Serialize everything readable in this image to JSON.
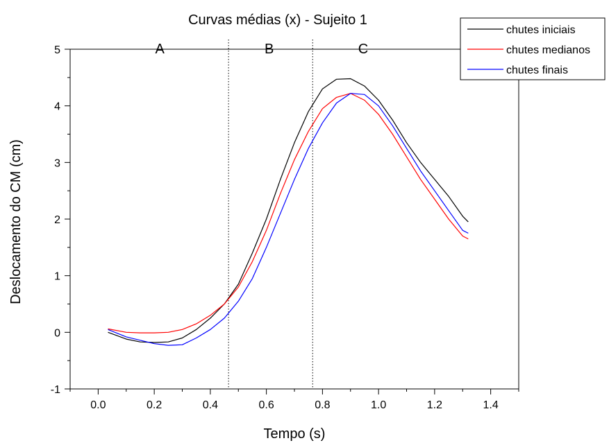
{
  "chart_data": {
    "type": "line",
    "title": "Curvas médias (x) - Sujeito 1",
    "xlabel": "Tempo (s)",
    "ylabel": "Deslocamento do CM (cm)",
    "xlim": [
      -0.1,
      1.5
    ],
    "ylim": [
      -1,
      5
    ],
    "xticks": [
      "0.0",
      "0.2",
      "0.4",
      "0.6",
      "0.8",
      "1.0",
      "1.2",
      "1.4"
    ],
    "yticks": [
      "-1",
      "0",
      "1",
      "2",
      "3",
      "4",
      "5"
    ],
    "grid": false,
    "legend_position": "top-right",
    "regions": {
      "dividers": [
        0.465,
        0.765
      ],
      "labels": [
        {
          "text": "A",
          "x": 0.22
        },
        {
          "text": "B",
          "x": 0.61
        },
        {
          "text": "C",
          "x": 0.945
        }
      ]
    },
    "series": [
      {
        "name": "chutes iniciais",
        "color": "#000000",
        "x": [
          0.035,
          0.1,
          0.15,
          0.2,
          0.25,
          0.3,
          0.35,
          0.4,
          0.45,
          0.5,
          0.55,
          0.6,
          0.65,
          0.7,
          0.75,
          0.8,
          0.85,
          0.9,
          0.95,
          1.0,
          1.05,
          1.1,
          1.15,
          1.2,
          1.25,
          1.3,
          1.32
        ],
        "y": [
          0.0,
          -0.12,
          -0.17,
          -0.18,
          -0.17,
          -0.1,
          0.05,
          0.25,
          0.5,
          0.85,
          1.4,
          2.0,
          2.7,
          3.35,
          3.9,
          4.3,
          4.47,
          4.48,
          4.35,
          4.1,
          3.75,
          3.35,
          3.0,
          2.7,
          2.4,
          2.05,
          1.95
        ]
      },
      {
        "name": "chutes medianos",
        "color": "#ff0000",
        "x": [
          0.035,
          0.1,
          0.15,
          0.2,
          0.25,
          0.3,
          0.35,
          0.4,
          0.45,
          0.5,
          0.55,
          0.6,
          0.65,
          0.7,
          0.75,
          0.8,
          0.85,
          0.9,
          0.95,
          1.0,
          1.05,
          1.1,
          1.15,
          1.2,
          1.25,
          1.3,
          1.32
        ],
        "y": [
          0.06,
          0.0,
          -0.01,
          -0.01,
          0.0,
          0.05,
          0.15,
          0.3,
          0.5,
          0.8,
          1.25,
          1.8,
          2.45,
          3.05,
          3.55,
          3.95,
          4.15,
          4.22,
          4.1,
          3.85,
          3.5,
          3.1,
          2.7,
          2.35,
          2.0,
          1.7,
          1.65
        ]
      },
      {
        "name": "chutes finais",
        "color": "#0000ff",
        "x": [
          0.035,
          0.1,
          0.15,
          0.2,
          0.25,
          0.3,
          0.35,
          0.4,
          0.45,
          0.5,
          0.55,
          0.6,
          0.65,
          0.7,
          0.75,
          0.8,
          0.85,
          0.9,
          0.95,
          1.0,
          1.05,
          1.1,
          1.15,
          1.2,
          1.25,
          1.3,
          1.32
        ],
        "y": [
          0.05,
          -0.08,
          -0.14,
          -0.2,
          -0.23,
          -0.22,
          -0.1,
          0.05,
          0.25,
          0.55,
          0.95,
          1.5,
          2.1,
          2.7,
          3.25,
          3.7,
          4.05,
          4.22,
          4.2,
          4.0,
          3.65,
          3.25,
          2.85,
          2.5,
          2.15,
          1.8,
          1.75
        ]
      }
    ]
  }
}
